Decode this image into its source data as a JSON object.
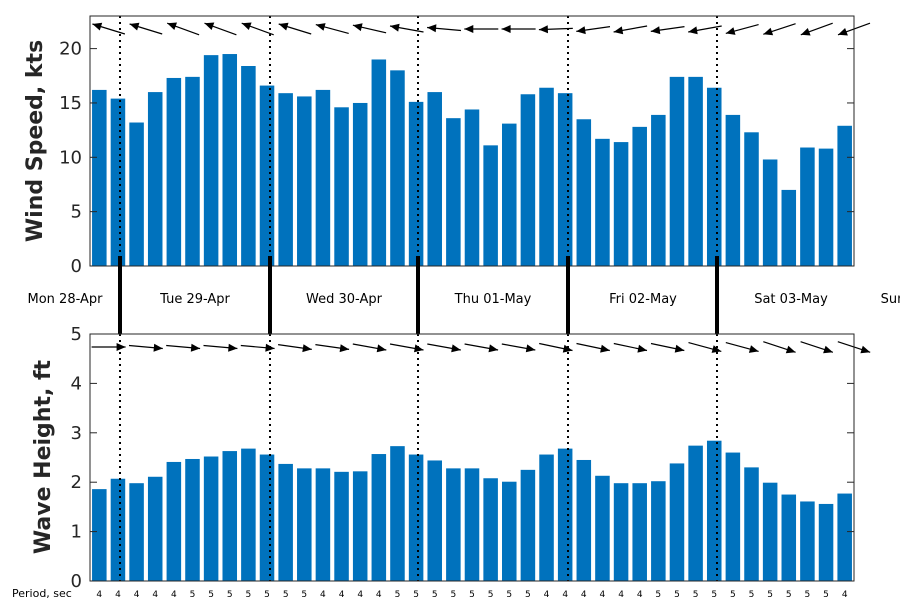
{
  "chart_data": [
    {
      "type": "bar",
      "ylabel": "Wind Speed, kts",
      "ylim": [
        0,
        23
      ],
      "yticks": [
        0,
        5,
        10,
        15,
        20
      ],
      "bar_color": "#0072BD",
      "values": [
        16.2,
        15.4,
        13.2,
        16.0,
        17.3,
        17.4,
        19.4,
        19.5,
        18.4,
        16.6,
        15.9,
        15.6,
        16.2,
        14.6,
        15.0,
        19.0,
        18.0,
        15.1,
        16.0,
        13.6,
        14.4,
        11.1,
        13.1,
        15.8,
        16.4,
        15.9,
        13.5,
        11.7,
        11.4,
        12.8,
        13.9,
        17.4,
        17.4,
        16.4,
        13.9,
        12.3,
        9.8,
        7.0,
        10.9,
        10.8,
        12.9
      ],
      "direction_glyph": "arrows pointing in wind direction above bars"
    },
    {
      "type": "bar",
      "ylabel": "Wave Height, ft",
      "ylim": [
        0,
        5
      ],
      "yticks": [
        0,
        1,
        2,
        3,
        4,
        5
      ],
      "bar_color": "#0072BD",
      "values": [
        1.86,
        2.07,
        1.98,
        2.11,
        2.41,
        2.47,
        2.52,
        2.63,
        2.68,
        2.56,
        2.37,
        2.28,
        2.28,
        2.21,
        2.22,
        2.57,
        2.73,
        2.56,
        2.44,
        2.28,
        2.28,
        2.08,
        2.01,
        2.25,
        2.56,
        2.68,
        2.45,
        2.13,
        1.98,
        1.98,
        2.02,
        2.38,
        2.74,
        2.84,
        2.6,
        2.3,
        1.99,
        1.75,
        1.61,
        1.56,
        1.77
      ],
      "direction_glyph": "arrows pointing in wave direction above bars"
    }
  ],
  "days": [
    "Mon 28-Apr",
    "Tue 29-Apr",
    "Wed 30-Apr",
    "Thu 01-May",
    "Fri 02-May",
    "Sat 03-May",
    "Sun"
  ],
  "period_title": "Period, sec",
  "periods": [
    "4",
    "4",
    "4",
    "4",
    "4",
    "5",
    "5",
    "5",
    "5",
    "5",
    "5",
    "5",
    "4",
    "4",
    "4",
    "4",
    "5",
    "5",
    "5",
    "5",
    "5",
    "5",
    "5",
    "5",
    "4",
    "4",
    "4",
    "4",
    "4",
    "4",
    "5",
    "5",
    "5",
    "5",
    "5",
    "5",
    "5",
    "5",
    "5",
    "5",
    "4"
  ],
  "wind_arrow_angles": [
    197,
    197,
    197,
    200,
    200,
    200,
    200,
    200,
    200,
    197,
    197,
    197,
    195,
    195,
    193,
    193,
    190,
    188,
    185,
    180,
    180,
    180,
    180,
    180,
    178,
    175,
    172,
    170,
    170,
    172,
    172,
    170,
    170,
    168,
    165,
    165,
    162,
    162,
    160,
    160,
    160
  ],
  "wave_arrow_angles": [
    0,
    3,
    5,
    5,
    5,
    5,
    5,
    5,
    5,
    8,
    8,
    8,
    8,
    8,
    10,
    10,
    10,
    10,
    10,
    10,
    10,
    10,
    10,
    10,
    12,
    12,
    12,
    12,
    12,
    12,
    12,
    12,
    15,
    15,
    15,
    15,
    18,
    18,
    18,
    18,
    18
  ]
}
